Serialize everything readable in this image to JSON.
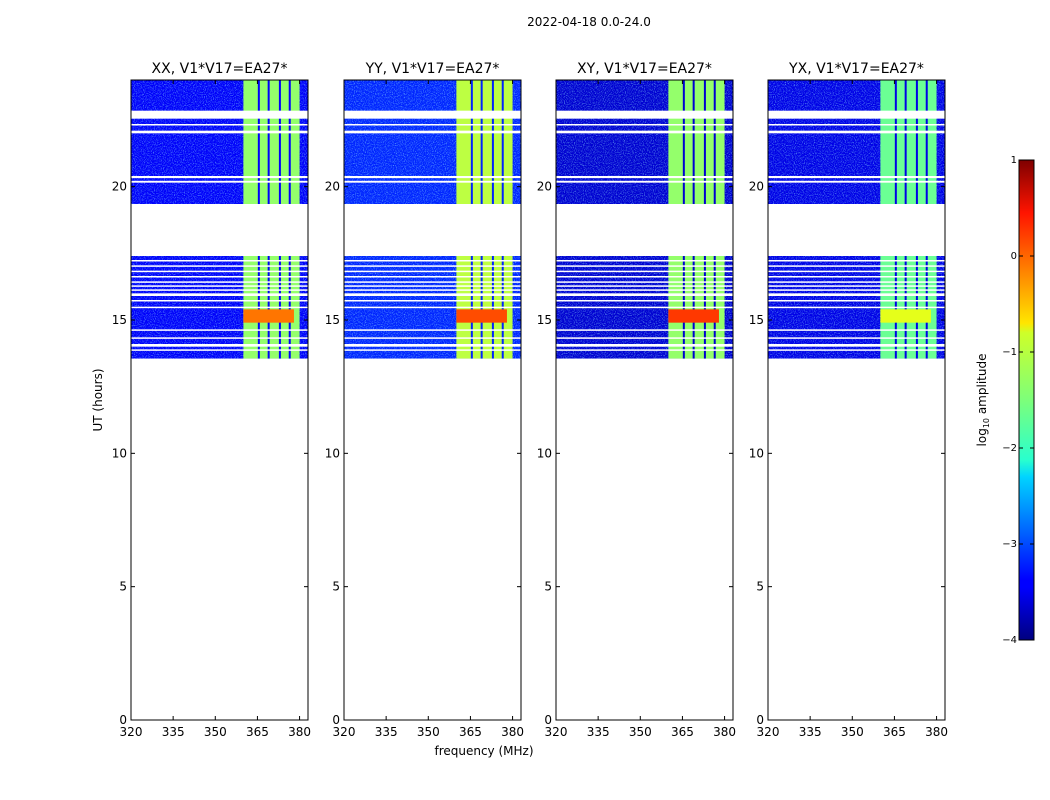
{
  "figure": {
    "suptitle": "2022-04-18 0.0-24.0",
    "xlabel": "frequency (MHz)",
    "ylabel": "UT (hours)",
    "colorbar_label": "log10 amplitude",
    "colorbar_label_main": "log",
    "colorbar_label_sub": "10",
    "colorbar_label_tail": " amplitude",
    "colorbar_range": [
      -4,
      1
    ],
    "colorbar_ticks": [
      "1",
      "0",
      "−1",
      "−2",
      "−3",
      "−4"
    ],
    "colormap": "jet"
  },
  "chart_data": [
    {
      "type": "heatmap",
      "title": "XX, V1*V17=EA27*",
      "xlim": [
        320,
        383
      ],
      "ylim": [
        0,
        24
      ],
      "xticks": [
        320,
        335,
        350,
        365,
        380
      ],
      "xticklabels": [
        "320",
        "335",
        "350",
        "365",
        "380"
      ],
      "yticks": [
        0,
        5,
        10,
        15,
        20
      ],
      "yticklabels": [
        "0",
        "5",
        "10",
        "15",
        "20"
      ],
      "data_time_range": [
        13.55,
        24.0
      ],
      "background_log10_amplitude": -3.4,
      "bright_band_freq_range": [
        360,
        380
      ],
      "bright_band_log10_amplitude": -1.4,
      "peak_block": {
        "time_range": [
          14.9,
          15.4
        ],
        "freq_range": [
          360,
          378
        ],
        "log10_amplitude": -0.2
      }
    },
    {
      "type": "heatmap",
      "title": "YY, V1*V17=EA27*",
      "xlim": [
        320,
        383
      ],
      "ylim": [
        0,
        24
      ],
      "xticks": [
        320,
        335,
        350,
        365,
        380
      ],
      "xticklabels": [
        "320",
        "335",
        "350",
        "365",
        "380"
      ],
      "yticks": [
        0,
        5,
        10,
        15,
        20
      ],
      "yticklabels": [
        "0",
        "5",
        "10",
        "15",
        "20"
      ],
      "data_time_range": [
        13.55,
        24.0
      ],
      "background_log10_amplitude": -3.2,
      "bright_band_freq_range": [
        360,
        380
      ],
      "bright_band_log10_amplitude": -1.2,
      "peak_block": {
        "time_range": [
          14.9,
          15.4
        ],
        "freq_range": [
          360,
          378
        ],
        "log10_amplitude": 0.0
      }
    },
    {
      "type": "heatmap",
      "title": "XY, V1*V17=EA27*",
      "xlim": [
        320,
        383
      ],
      "ylim": [
        0,
        24
      ],
      "xticks": [
        320,
        335,
        350,
        365,
        380
      ],
      "xticklabels": [
        "320",
        "335",
        "350",
        "365",
        "380"
      ],
      "yticks": [
        0,
        5,
        10,
        15,
        20
      ],
      "yticklabels": [
        "0",
        "5",
        "10",
        "15",
        "20"
      ],
      "data_time_range": [
        13.55,
        24.0
      ],
      "background_log10_amplitude": -3.6,
      "bright_band_freq_range": [
        360,
        380
      ],
      "bright_band_log10_amplitude": -1.4,
      "peak_block": {
        "time_range": [
          14.9,
          15.4
        ],
        "freq_range": [
          360,
          378
        ],
        "log10_amplitude": 0.1
      }
    },
    {
      "type": "heatmap",
      "title": "YX, V1*V17=EA27*",
      "xlim": [
        320,
        383
      ],
      "ylim": [
        0,
        24
      ],
      "xticks": [
        320,
        335,
        350,
        365,
        380
      ],
      "xticklabels": [
        "320",
        "335",
        "350",
        "365",
        "380"
      ],
      "yticks": [
        0,
        5,
        10,
        15,
        20
      ],
      "yticklabels": [
        "0",
        "5",
        "10",
        "15",
        "20"
      ],
      "data_time_range": [
        13.55,
        24.0
      ],
      "background_log10_amplitude": -3.5,
      "bright_band_freq_range": [
        360,
        380
      ],
      "bright_band_log10_amplitude": -1.6,
      "peak_block": {
        "time_range": [
          14.9,
          15.4
        ],
        "freq_range": [
          360,
          378
        ],
        "log10_amplitude": -1.0
      }
    }
  ],
  "flagged_time_ranges_hours": [
    [
      15.9,
      16.0
    ],
    [
      16.1,
      16.15
    ],
    [
      16.25,
      16.3
    ],
    [
      16.4,
      16.45
    ],
    [
      16.6,
      16.65
    ],
    [
      16.8,
      16.85
    ],
    [
      17.0,
      17.05
    ],
    [
      17.2,
      17.25
    ],
    [
      15.45,
      15.5
    ],
    [
      15.7,
      15.75
    ],
    [
      14.6,
      14.65
    ],
    [
      14.3,
      14.35
    ],
    [
      14.0,
      14.1
    ],
    [
      13.85,
      13.9
    ],
    [
      17.4,
      19.35
    ],
    [
      20.15,
      20.22
    ],
    [
      20.32,
      20.4
    ],
    [
      22.0,
      22.1
    ],
    [
      22.3,
      22.35
    ],
    [
      22.55,
      22.85
    ]
  ],
  "flagged_channels_mhz": [
    365.5,
    369.0,
    373.0,
    376.5
  ]
}
